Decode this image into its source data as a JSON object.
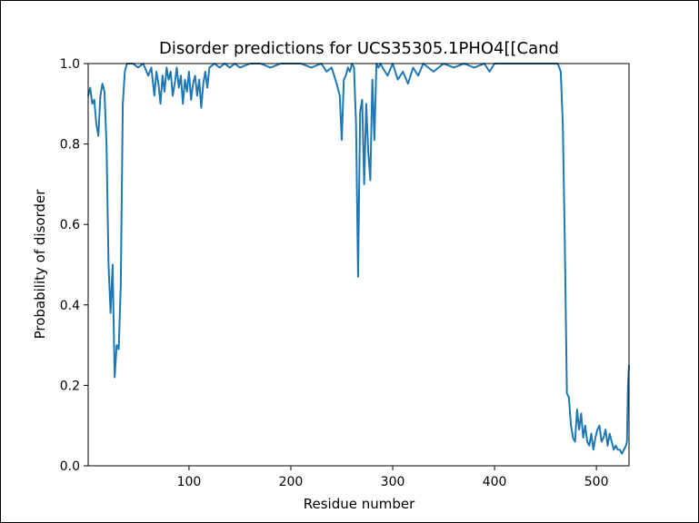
{
  "chart_data": {
    "type": "line",
    "title": "Disorder predictions for UCS35305.1PHO4[[Cand",
    "xlabel": "Residue number",
    "ylabel": "Probability of disorder",
    "xlim": [
      1,
      532
    ],
    "ylim": [
      0.0,
      1.0
    ],
    "xticks": [
      100,
      200,
      300,
      400,
      500
    ],
    "yticks": [
      0.0,
      0.2,
      0.4,
      0.6,
      0.8,
      1.0
    ],
    "xtick_labels": [
      "100",
      "200",
      "300",
      "400",
      "500"
    ],
    "ytick_labels": [
      "0.0",
      "0.2",
      "0.4",
      "0.6",
      "0.8",
      "1.0"
    ],
    "grid": false,
    "line_color": "#1f77b4",
    "series": [
      {
        "x": [
          1,
          3,
          5,
          7,
          9,
          11,
          13,
          15,
          17,
          19,
          21,
          23,
          25,
          27,
          29,
          31,
          33,
          35,
          37,
          39,
          41,
          45,
          50,
          55,
          60,
          63,
          66,
          68,
          70,
          72,
          74,
          76,
          78,
          80,
          82,
          84,
          86,
          88,
          90,
          92,
          94,
          96,
          98,
          100,
          102,
          104,
          106,
          108,
          110,
          112,
          114,
          116,
          118,
          120,
          125,
          130,
          135,
          140,
          145,
          150,
          160,
          170,
          180,
          190,
          200,
          210,
          220,
          230,
          235,
          240,
          245,
          248,
          250,
          252,
          254,
          256,
          258,
          260,
          262,
          264,
          266,
          268,
          270,
          272,
          274,
          276,
          278,
          280,
          282,
          284,
          286,
          288,
          290,
          295,
          300,
          305,
          310,
          315,
          320,
          325,
          330,
          340,
          350,
          360,
          370,
          380,
          390,
          395,
          400,
          410,
          420,
          430,
          440,
          450,
          458,
          462,
          465,
          467,
          469,
          471,
          473,
          475,
          477,
          479,
          481,
          483,
          485,
          487,
          489,
          491,
          493,
          495,
          497,
          499,
          501,
          503,
          505,
          507,
          509,
          511,
          513,
          515,
          517,
          519,
          521,
          523,
          525,
          527,
          529,
          530,
          531,
          532
        ],
        "y": [
          0.92,
          0.94,
          0.9,
          0.91,
          0.85,
          0.82,
          0.92,
          0.95,
          0.93,
          0.8,
          0.5,
          0.38,
          0.5,
          0.22,
          0.3,
          0.29,
          0.45,
          0.9,
          0.98,
          1.0,
          1.0,
          1.0,
          0.99,
          1.0,
          0.97,
          0.99,
          0.92,
          0.98,
          0.95,
          0.9,
          0.97,
          0.93,
          0.99,
          0.96,
          0.98,
          0.92,
          0.95,
          0.99,
          0.94,
          0.97,
          0.9,
          0.96,
          0.93,
          0.98,
          0.91,
          0.95,
          0.97,
          0.92,
          0.96,
          0.89,
          0.95,
          0.98,
          0.94,
          0.99,
          1.0,
          0.99,
          1.0,
          0.99,
          1.0,
          0.99,
          1.0,
          1.0,
          0.99,
          1.0,
          1.0,
          1.0,
          0.99,
          1.0,
          0.98,
          0.99,
          0.95,
          0.92,
          0.81,
          0.96,
          0.97,
          0.99,
          0.98,
          1.0,
          0.99,
          0.85,
          0.47,
          0.88,
          0.91,
          0.7,
          0.9,
          0.78,
          0.71,
          0.96,
          0.81,
          1.0,
          0.99,
          1.0,
          0.99,
          0.97,
          1.0,
          0.96,
          0.98,
          0.95,
          0.99,
          0.97,
          1.0,
          0.98,
          1.0,
          0.99,
          1.0,
          0.99,
          1.0,
          0.98,
          1.0,
          1.0,
          1.0,
          1.0,
          1.0,
          1.0,
          1.0,
          1.0,
          0.98,
          0.85,
          0.55,
          0.18,
          0.17,
          0.1,
          0.07,
          0.06,
          0.14,
          0.09,
          0.13,
          0.07,
          0.1,
          0.06,
          0.05,
          0.08,
          0.04,
          0.07,
          0.09,
          0.1,
          0.06,
          0.07,
          0.09,
          0.05,
          0.08,
          0.06,
          0.04,
          0.05,
          0.04,
          0.04,
          0.03,
          0.04,
          0.05,
          0.06,
          0.2,
          0.25
        ]
      }
    ]
  }
}
